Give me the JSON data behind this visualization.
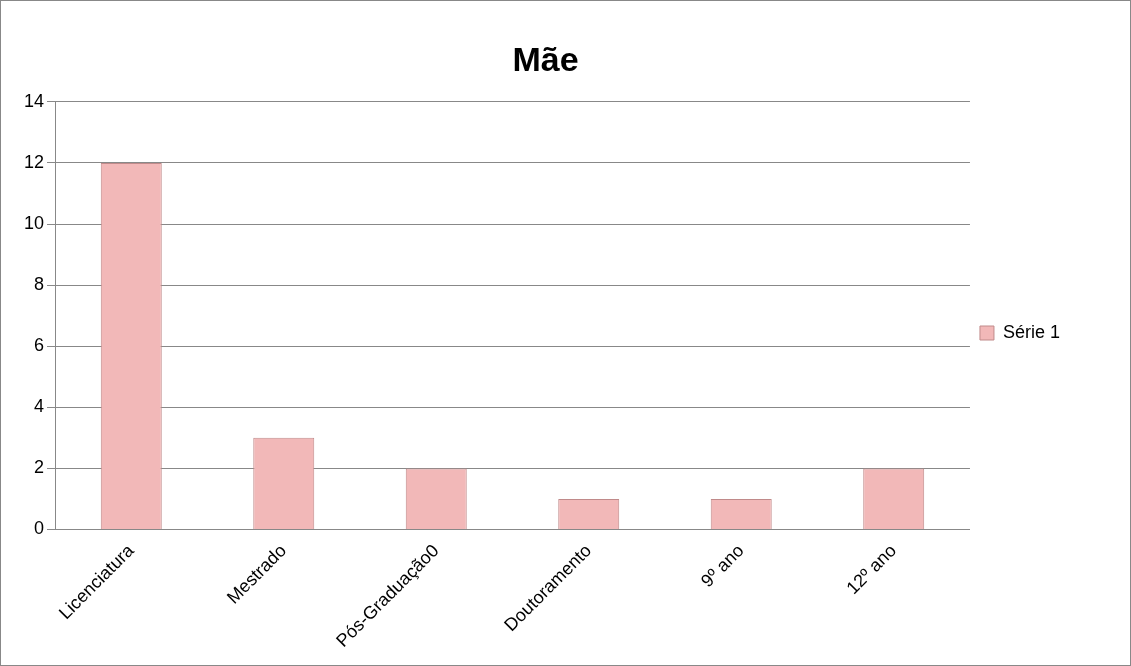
{
  "chart_data": {
    "type": "bar",
    "title": "Mãe",
    "categories": [
      "Licenciatura",
      "Mestrado",
      "Pós-Graduação0",
      "Doutoramento",
      "9º ano",
      "12º ano"
    ],
    "series": [
      {
        "name": "Série 1",
        "color": "#f2b8b8",
        "values": [
          12,
          3,
          2,
          1,
          1,
          2
        ]
      }
    ],
    "ylim": [
      0,
      14
    ],
    "yticks": [
      0,
      2,
      4,
      6,
      8,
      10,
      12,
      14
    ],
    "grid": "y",
    "legend": "right"
  }
}
